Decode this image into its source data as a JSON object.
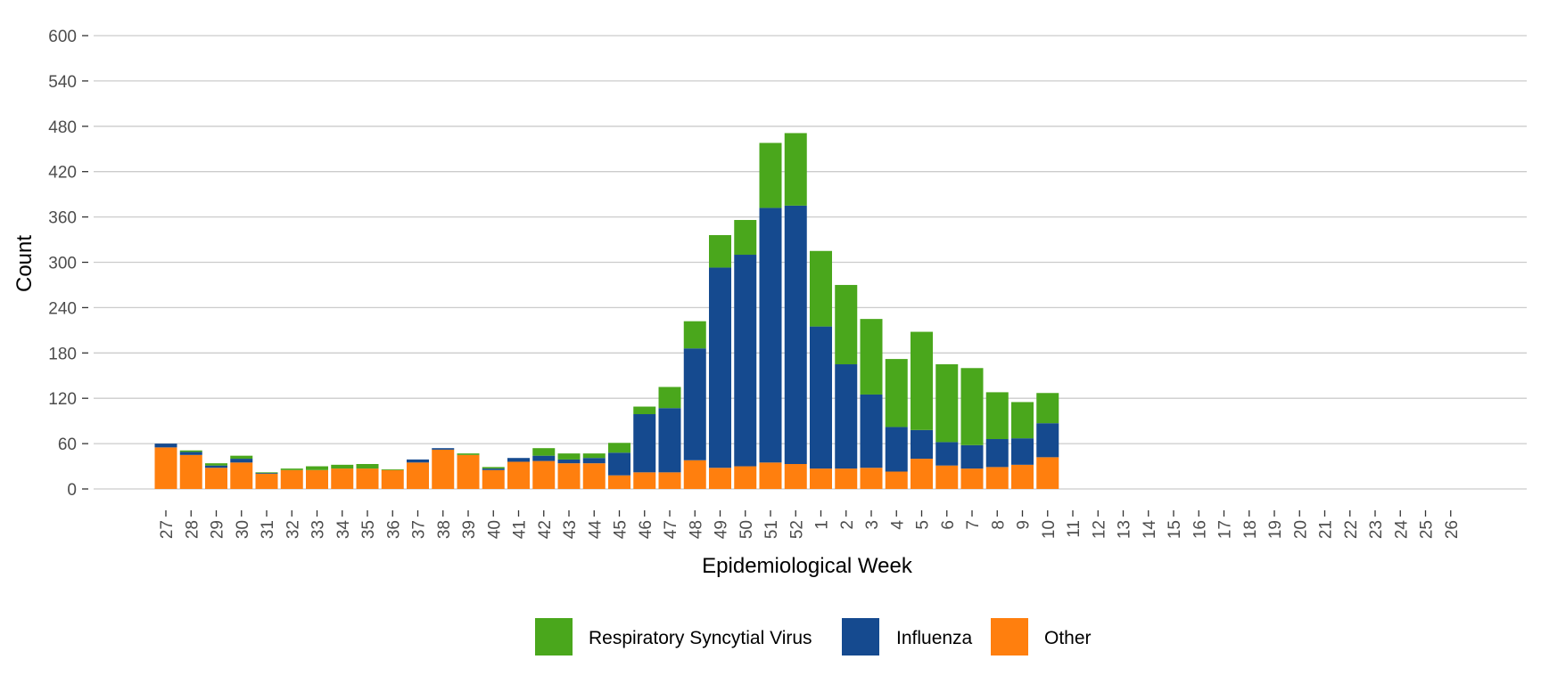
{
  "chart_data": {
    "type": "bar",
    "stacked": true,
    "title": "",
    "xlabel": "Epidemiological Week",
    "ylabel": "Count",
    "ylim": [
      0,
      600
    ],
    "yticks": [
      0,
      60,
      120,
      180,
      240,
      300,
      360,
      420,
      480,
      540,
      600
    ],
    "grid": "horizontal",
    "legend_position": "bottom",
    "categories": [
      "27",
      "28",
      "29",
      "30",
      "31",
      "32",
      "33",
      "34",
      "35",
      "36",
      "37",
      "38",
      "39",
      "40",
      "41",
      "42",
      "43",
      "44",
      "45",
      "46",
      "47",
      "48",
      "49",
      "50",
      "51",
      "52",
      "1",
      "2",
      "3",
      "4",
      "5",
      "6",
      "7",
      "8",
      "9",
      "10",
      "11",
      "12",
      "13",
      "14",
      "15",
      "16",
      "17",
      "18",
      "19",
      "20",
      "21",
      "22",
      "23",
      "24",
      "25",
      "26"
    ],
    "series": [
      {
        "name": "Other",
        "color": "#ff7f0e",
        "values": [
          55,
          45,
          28,
          35,
          20,
          25,
          25,
          27,
          27,
          25,
          35,
          52,
          45,
          25,
          36,
          37,
          34,
          34,
          18,
          22,
          22,
          38,
          28,
          30,
          35,
          33,
          27,
          27,
          28,
          23,
          40,
          31,
          27,
          29,
          32,
          42,
          0,
          0,
          0,
          0,
          0,
          0,
          0,
          0,
          0,
          0,
          0,
          0,
          0,
          0,
          0,
          0
        ]
      },
      {
        "name": "Influenza",
        "color": "#154a8f",
        "values": [
          5,
          4,
          3,
          5,
          1,
          0,
          0,
          0,
          0,
          0,
          4,
          2,
          0,
          2,
          5,
          7,
          5,
          7,
          30,
          77,
          85,
          148,
          265,
          280,
          337,
          342,
          188,
          138,
          97,
          59,
          38,
          31,
          31,
          37,
          35,
          45,
          0,
          0,
          0,
          0,
          0,
          0,
          0,
          0,
          0,
          0,
          0,
          0,
          0,
          0,
          0,
          0
        ]
      },
      {
        "name": "Respiratory Syncytial Virus",
        "color": "#4aa71c",
        "values": [
          0,
          2,
          3,
          4,
          1,
          2,
          5,
          5,
          6,
          1,
          0,
          0,
          2,
          2,
          0,
          10,
          8,
          6,
          13,
          10,
          28,
          36,
          43,
          46,
          86,
          96,
          100,
          105,
          100,
          90,
          130,
          103,
          102,
          62,
          48,
          40,
          0,
          0,
          0,
          0,
          0,
          0,
          0,
          0,
          0,
          0,
          0,
          0,
          0,
          0,
          0,
          0
        ]
      }
    ],
    "legend_order": [
      "Respiratory Syncytial Virus",
      "Influenza",
      "Other"
    ]
  }
}
